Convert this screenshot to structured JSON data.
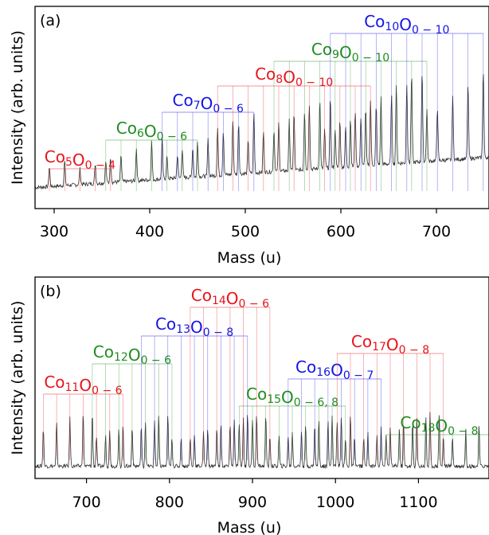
{
  "chart_data": [
    {
      "type": "line",
      "panel_label": "(a)",
      "xlabel": "Mass (u)",
      "ylabel": "Intensity (arb. units)",
      "xlim": [
        280,
        755
      ],
      "x_ticks": [
        300,
        400,
        500,
        600,
        700
      ],
      "grid": false,
      "groups": [
        {
          "element": "Co",
          "n": "5",
          "o_range": "0 − 4",
          "color": "#e8141c",
          "start_mass": 295,
          "count": 5
        },
        {
          "element": "Co",
          "n": "6",
          "o_range": "0 − 6",
          "color": "#1f8c1f",
          "start_mass": 354,
          "count": 7
        },
        {
          "element": "Co",
          "n": "7",
          "o_range": "0 − 6",
          "color": "#1414e6",
          "start_mass": 413,
          "count": 7
        },
        {
          "element": "Co",
          "n": "8",
          "o_range": "0 − 10",
          "color": "#e8141c",
          "start_mass": 471,
          "count": 11
        },
        {
          "element": "Co",
          "n": "9",
          "o_range": "0 − 10",
          "color": "#1f8c1f",
          "start_mass": 530,
          "count": 11
        },
        {
          "element": "Co",
          "n": "10",
          "o_range": "0 − 10",
          "color": "#1414e6",
          "start_mass": 589,
          "count": 11
        }
      ]
    },
    {
      "type": "line",
      "panel_label": "(b)",
      "xlabel": "Mass (u)",
      "ylabel": "Intensity (arb. units)",
      "xlim": [
        638,
        1185
      ],
      "x_ticks": [
        700,
        800,
        900,
        1000,
        1100
      ],
      "grid": false,
      "groups": [
        {
          "element": "Co",
          "n": "11",
          "o_range": "0 − 6",
          "color": "#e8141c",
          "start_mass": 648,
          "count": 7
        },
        {
          "element": "Co",
          "n": "12",
          "o_range": "0 − 6",
          "color": "#1f8c1f",
          "start_mass": 707,
          "count": 7
        },
        {
          "element": "Co",
          "n": "13",
          "o_range": "0 − 8",
          "color": "#1414e6",
          "start_mass": 766,
          "count": 9
        },
        {
          "element": "Co",
          "n": "14",
          "o_range": "0 − 6",
          "color": "#e8141c",
          "start_mass": 825,
          "count": 7
        },
        {
          "element": "Co",
          "n": "15",
          "o_range": "0 − 6, 8",
          "color": "#1f8c1f",
          "start_mass": 884,
          "count": 9
        },
        {
          "element": "Co",
          "n": "16",
          "o_range": "0 − 7",
          "color": "#1414e6",
          "start_mass": 943,
          "count": 8
        },
        {
          "element": "Co",
          "n": "17",
          "o_range": "0 − 8",
          "color": "#e8141c",
          "start_mass": 1002,
          "count": 9
        },
        {
          "element": "Co",
          "n": "18",
          "o_range": "0 − 8",
          "color": "#1f8c1f",
          "start_mass": 1061,
          "count": 9
        }
      ]
    }
  ]
}
